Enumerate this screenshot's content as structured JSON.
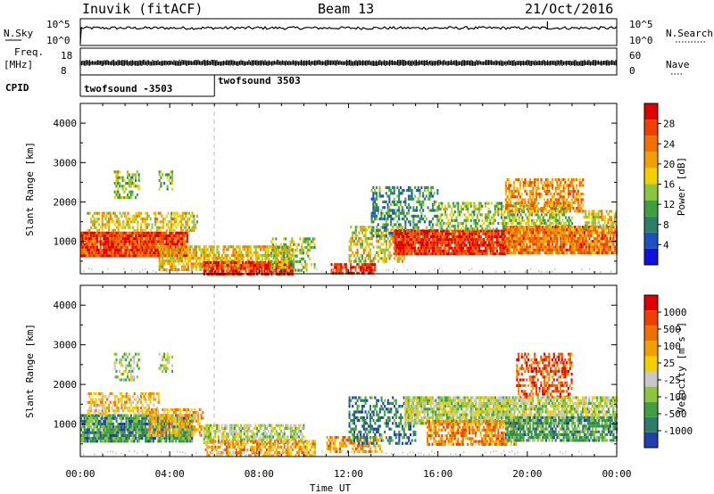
{
  "header": {
    "station": "Inuvik (fitACF)",
    "beam": "Beam 13",
    "date": "21/Oct/2016"
  },
  "strip": {
    "nsky_label": "N.Sky",
    "nsky_ticks": [
      "10^5",
      "10^0"
    ],
    "nsearch_label": "N.Search",
    "nsearch_ticks": [
      "10^5",
      "10^0"
    ],
    "freq_label": "Freq.",
    "freq_unit": "[MHz]",
    "freq_ticks": [
      "18",
      "8"
    ],
    "nave_label": "Nave",
    "nave_ticks": [
      "60",
      "0"
    ],
    "cpid_label": "CPID",
    "cpid_segments": [
      {
        "name": "twofsound -3503",
        "start_hr": 0,
        "end_hr": 6
      },
      {
        "name": "twofsound 3503",
        "start_hr": 6,
        "end_hr": 24
      }
    ]
  },
  "chart_data": [
    {
      "type": "heatmap",
      "parameter": "Power",
      "ylabel": "Slant Range [km]",
      "colorbar_label": "Power [dB]",
      "ylim": [
        180,
        4500
      ],
      "yticks": [
        1000,
        2000,
        3000,
        4000
      ],
      "xlim": [
        0,
        24
      ],
      "colorbar_ticks": [
        "4",
        "8",
        "12",
        "16",
        "20",
        "24",
        "28"
      ],
      "colors": [
        "#1010e0",
        "#2050c0",
        "#2e7d6a",
        "#40a040",
        "#8cc63f",
        "#f0d000",
        "#f0a000",
        "#f07000",
        "#f04000",
        "#e00000"
      ],
      "regions": [
        {
          "t0": 0.0,
          "t1": 4.8,
          "r0": 650,
          "r1": 1250,
          "level": 0.85,
          "density": 0.95
        },
        {
          "t0": 0.3,
          "t1": 5.2,
          "r0": 1250,
          "r1": 1750,
          "level": 0.55,
          "density": 0.55
        },
        {
          "t0": 1.5,
          "t1": 2.6,
          "r0": 2100,
          "r1": 2800,
          "level": 0.45,
          "density": 0.5
        },
        {
          "t0": 3.5,
          "t1": 4.1,
          "r0": 2300,
          "r1": 2800,
          "level": 0.4,
          "density": 0.4
        },
        {
          "t0": 3.5,
          "t1": 9.5,
          "r0": 300,
          "r1": 900,
          "level": 0.6,
          "density": 0.7
        },
        {
          "t0": 5.5,
          "t1": 9.5,
          "r0": 200,
          "r1": 500,
          "level": 0.9,
          "density": 0.85
        },
        {
          "t0": 8.5,
          "t1": 10.5,
          "r0": 300,
          "r1": 1100,
          "level": 0.45,
          "density": 0.4
        },
        {
          "t0": 11.2,
          "t1": 13.2,
          "r0": 200,
          "r1": 450,
          "level": 0.9,
          "density": 0.8
        },
        {
          "t0": 12.0,
          "t1": 14.5,
          "r0": 500,
          "r1": 1400,
          "level": 0.55,
          "density": 0.5
        },
        {
          "t0": 13.0,
          "t1": 16.0,
          "r0": 1100,
          "r1": 2400,
          "level": 0.3,
          "density": 0.45
        },
        {
          "t0": 14.0,
          "t1": 19.0,
          "r0": 700,
          "r1": 1300,
          "level": 0.88,
          "density": 0.92
        },
        {
          "t0": 16.0,
          "t1": 22.0,
          "r0": 1300,
          "r1": 2000,
          "level": 0.45,
          "density": 0.55
        },
        {
          "t0": 19.0,
          "t1": 22.5,
          "r0": 1800,
          "r1": 2600,
          "level": 0.7,
          "density": 0.55
        },
        {
          "t0": 19.0,
          "t1": 24.0,
          "r0": 700,
          "r1": 1400,
          "level": 0.75,
          "density": 0.9
        },
        {
          "t0": 22.5,
          "t1": 24.0,
          "r0": 1300,
          "r1": 1800,
          "level": 0.55,
          "density": 0.6
        }
      ]
    },
    {
      "type": "heatmap",
      "parameter": "Velocity",
      "ylabel": "Slant Range [km]",
      "colorbar_label": "Velocity [m s^-1]",
      "ylim": [
        180,
        4500
      ],
      "yticks": [
        1000,
        2000,
        3000,
        4000
      ],
      "xlim": [
        0,
        24
      ],
      "colorbar_ticks": [
        "1000",
        "500",
        "100",
        "25",
        "-25",
        "-100",
        "-500",
        "-1000"
      ],
      "colors": [
        "#2040b0",
        "#2e7d6a",
        "#40a040",
        "#8cc63f",
        "#c8c8c8",
        "#f0d000",
        "#f0a000",
        "#f07000",
        "#f04000",
        "#e00000"
      ],
      "regions": [
        {
          "t0": 0.0,
          "t1": 5.0,
          "r0": 600,
          "r1": 1250,
          "level": 0.22,
          "density": 0.9
        },
        {
          "t0": 0.3,
          "t1": 3.5,
          "r0": 1250,
          "r1": 1800,
          "level": 0.6,
          "density": 0.5
        },
        {
          "t0": 1.5,
          "t1": 2.6,
          "r0": 2100,
          "r1": 2800,
          "level": 0.38,
          "density": 0.45
        },
        {
          "t0": 3.5,
          "t1": 4.1,
          "r0": 2300,
          "r1": 2800,
          "level": 0.4,
          "density": 0.4
        },
        {
          "t0": 3.0,
          "t1": 5.5,
          "r0": 700,
          "r1": 1400,
          "level": 0.62,
          "density": 0.6
        },
        {
          "t0": 5.5,
          "t1": 10.0,
          "r0": 500,
          "r1": 1000,
          "level": 0.42,
          "density": 0.65
        },
        {
          "t0": 5.5,
          "t1": 10.5,
          "r0": 200,
          "r1": 600,
          "level": 0.65,
          "density": 0.6
        },
        {
          "t0": 11.0,
          "t1": 13.5,
          "r0": 300,
          "r1": 700,
          "level": 0.7,
          "density": 0.55
        },
        {
          "t0": 12.0,
          "t1": 15.0,
          "r0": 500,
          "r1": 1700,
          "level": 0.15,
          "density": 0.45
        },
        {
          "t0": 14.5,
          "t1": 20.0,
          "r0": 1000,
          "r1": 1700,
          "level": 0.42,
          "density": 0.85
        },
        {
          "t0": 15.5,
          "t1": 19.5,
          "r0": 500,
          "r1": 1100,
          "level": 0.72,
          "density": 0.65
        },
        {
          "t0": 19.5,
          "t1": 22.0,
          "r0": 1700,
          "r1": 2800,
          "level": 0.82,
          "density": 0.5
        },
        {
          "t0": 19.0,
          "t1": 24.0,
          "r0": 600,
          "r1": 1200,
          "level": 0.25,
          "density": 0.8
        },
        {
          "t0": 20.0,
          "t1": 24.0,
          "r0": 1200,
          "r1": 1700,
          "level": 0.42,
          "density": 0.75
        }
      ]
    }
  ],
  "xaxis": {
    "label": "Time UT",
    "ticks": [
      "00:00",
      "04:00",
      "08:00",
      "12:00",
      "16:00",
      "20:00",
      "00:00"
    ]
  }
}
